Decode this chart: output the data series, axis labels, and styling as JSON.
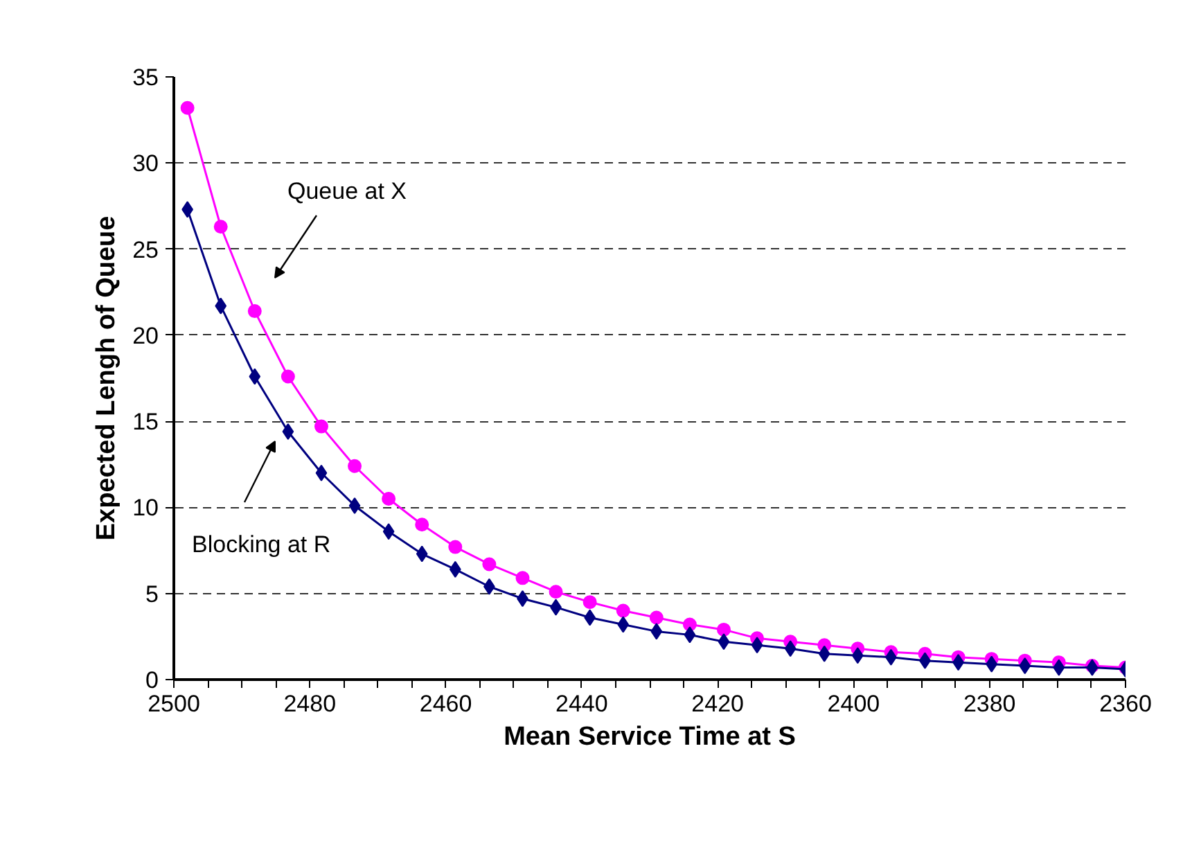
{
  "chart_data": {
    "type": "line",
    "xlabel": "Mean Service Time at S",
    "ylabel": "Expected Lengh of Queue",
    "x": [
      2498,
      2493.1,
      2488.1,
      2483.2,
      2478.3,
      2473.4,
      2468.4,
      2463.5,
      2458.6,
      2453.6,
      2448.7,
      2443.8,
      2438.8,
      2433.9,
      2429,
      2424.1,
      2419.1,
      2414.2,
      2409.3,
      2404.3,
      2399.4,
      2394.5,
      2389.5,
      2384.6,
      2379.7,
      2374.8,
      2369.8,
      2364.9,
      2360
    ],
    "series": [
      {
        "color": "#ff00ff",
        "marker": "circle",
        "values": [
          33.2,
          26.3,
          21.4,
          17.6,
          14.7,
          12.4,
          10.5,
          9.0,
          7.7,
          6.7,
          5.9,
          5.1,
          4.5,
          4.0,
          3.6,
          3.2,
          2.9,
          2.4,
          2.2,
          2.0,
          1.8,
          1.6,
          1.5,
          1.3,
          1.2,
          1.1,
          1.0,
          0.8,
          0.7
        ]
      },
      {
        "color": "#000080",
        "marker": "diamond",
        "values": [
          27.3,
          21.7,
          17.6,
          14.4,
          12.0,
          10.1,
          8.6,
          7.3,
          6.4,
          5.4,
          4.7,
          4.2,
          3.6,
          3.2,
          2.8,
          2.6,
          2.2,
          2.0,
          1.8,
          1.5,
          1.4,
          1.3,
          1.1,
          1.0,
          0.9,
          0.8,
          0.7,
          0.7,
          0.6
        ]
      }
    ],
    "annotations": [
      "Queue at X",
      "Blocking at R"
    ],
    "xlim": [
      2500,
      2360
    ],
    "ylim": [
      0,
      35
    ],
    "xticks": [
      2500,
      {
        "value": 2495,
        "label": null
      },
      {
        "value": 2490,
        "label": null
      },
      {
        "value": 2485,
        "label": null
      },
      2480,
      {
        "value": 2475,
        "label": null
      },
      {
        "value": 2470,
        "label": null
      },
      {
        "value": 2465,
        "label": null
      },
      2460,
      {
        "value": 2455,
        "label": null
      },
      {
        "value": 2450,
        "label": null
      },
      {
        "value": 2445,
        "label": null
      },
      2440,
      {
        "value": 2435,
        "label": null
      },
      {
        "value": 2430,
        "label": null
      },
      {
        "value": 2425,
        "label": null
      },
      2420,
      {
        "value": 2415,
        "label": null
      },
      {
        "value": 2410,
        "label": null
      },
      {
        "value": 2405,
        "label": null
      },
      2400,
      {
        "value": 2395,
        "label": null
      },
      {
        "value": 2390,
        "label": null
      },
      {
        "value": 2385,
        "label": null
      },
      2380,
      {
        "value": 2375,
        "label": null
      },
      {
        "value": 2370,
        "label": null
      },
      {
        "value": 2365,
        "label": null
      },
      2360
    ],
    "yticks": [
      0,
      5,
      10,
      15,
      20,
      25,
      30,
      35
    ],
    "grid": "y",
    "line_style": "solid"
  }
}
